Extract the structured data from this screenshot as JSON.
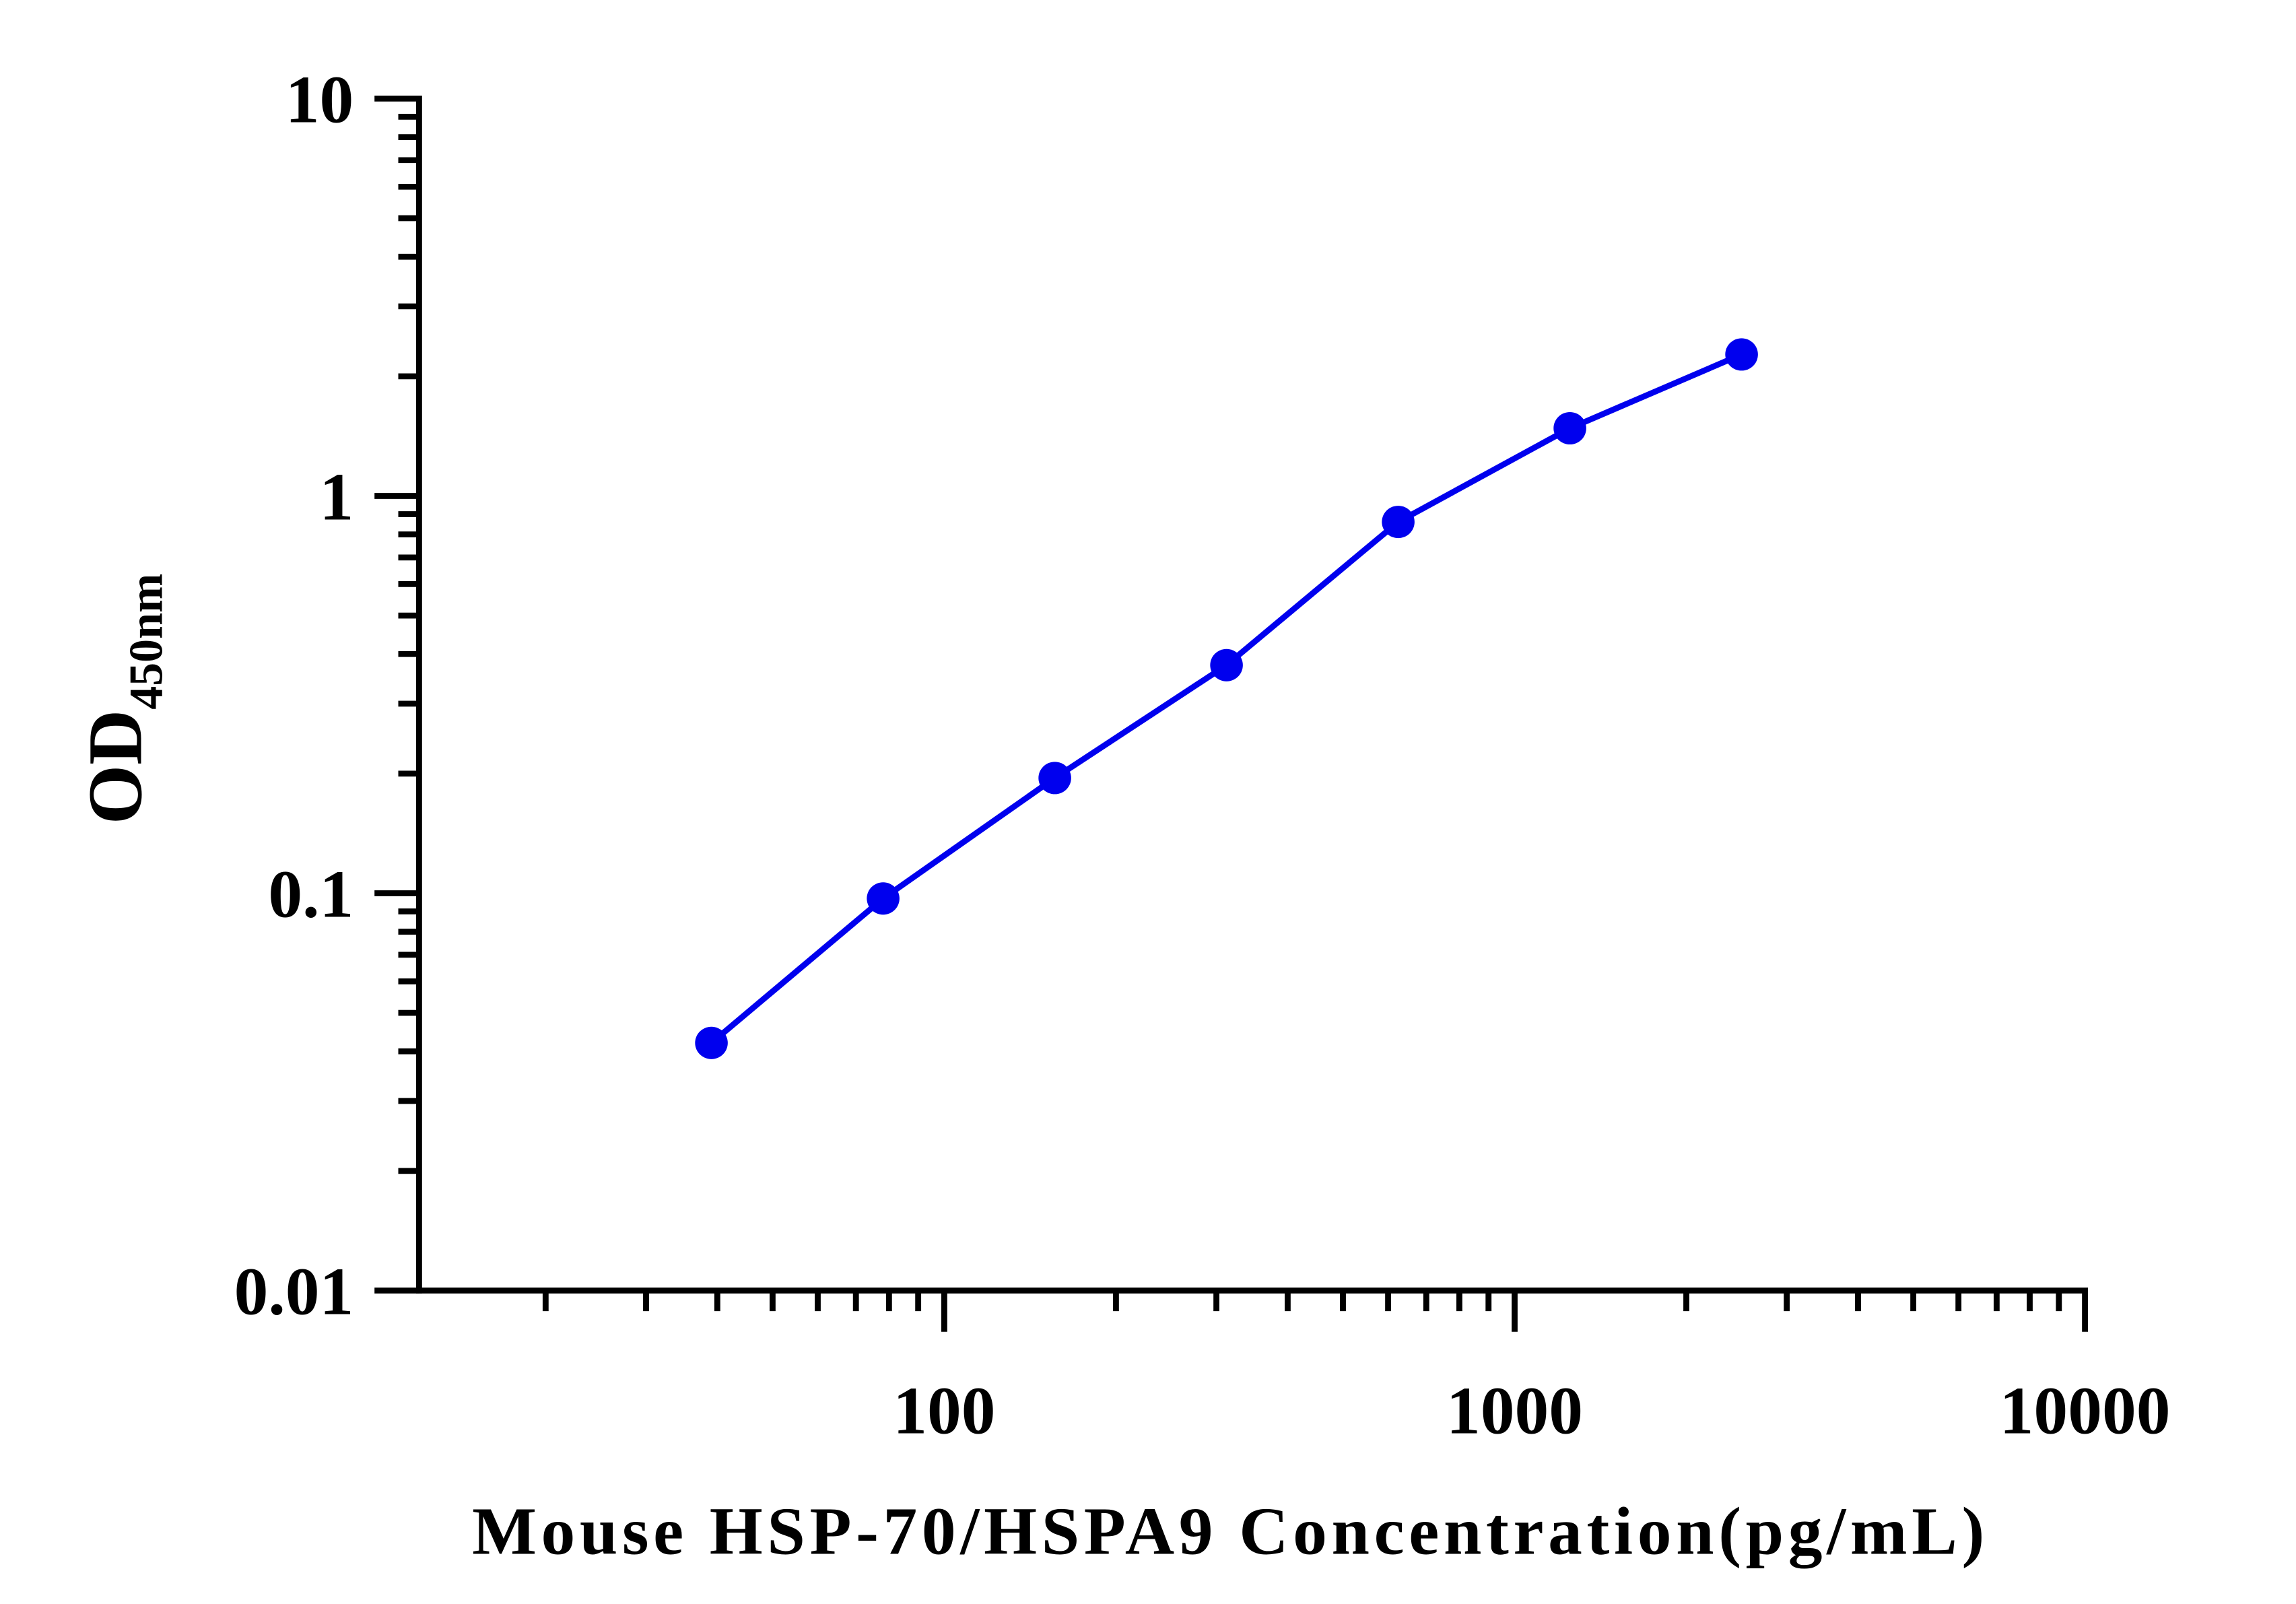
{
  "chart_data": {
    "type": "line",
    "x_label": "Mouse HSP-70/HSPA9 Concentration(pg/mL)",
    "y_label": "OD",
    "y_label_subscript": "450nm",
    "x": [
      39.06,
      78.13,
      156.25,
      312.5,
      625,
      1250,
      2500
    ],
    "series": [
      {
        "color": "#0000ee",
        "values": [
          0.042,
          0.097,
          0.195,
          0.375,
          0.86,
          1.48,
          2.27
        ]
      }
    ],
    "x_log": true,
    "y_log": true,
    "xlim": [
      12,
      10000
    ],
    "xticks": [
      100,
      1000,
      10000
    ],
    "ylim": [
      0.01,
      10
    ],
    "yticks": [
      0.01,
      0.1,
      1,
      10
    ],
    "grid": false
  }
}
